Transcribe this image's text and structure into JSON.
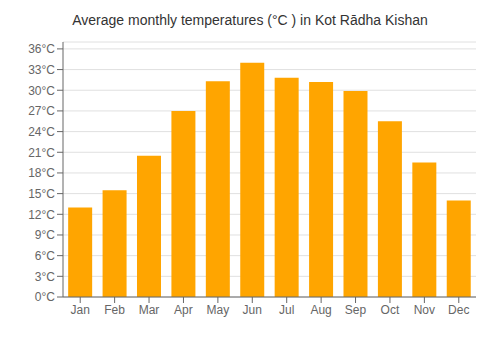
{
  "chart_data": {
    "type": "bar",
    "title": "Average monthly temperatures (°C ) in Kot Rādha Kishan",
    "categories": [
      "Jan",
      "Feb",
      "Mar",
      "Apr",
      "May",
      "Jun",
      "Jul",
      "Aug",
      "Sep",
      "Oct",
      "Nov",
      "Dec"
    ],
    "values": [
      13.0,
      15.5,
      20.5,
      27.0,
      31.3,
      34.0,
      31.8,
      31.2,
      29.9,
      25.5,
      19.5,
      14.0
    ],
    "color": "#FFA500",
    "ylim": [
      0,
      37
    ],
    "yticks": [
      {
        "value": 0,
        "label": "0°C"
      },
      {
        "value": 3,
        "label": "3°C"
      },
      {
        "value": 6,
        "label": "6°C"
      },
      {
        "value": 9,
        "label": "9°C"
      },
      {
        "value": 12,
        "label": "12°C"
      },
      {
        "value": 15,
        "label": "15°C"
      },
      {
        "value": 18,
        "label": "18°C"
      },
      {
        "value": 21,
        "label": "21°C"
      },
      {
        "value": 24,
        "label": "24°C"
      },
      {
        "value": 27,
        "label": "27°C"
      },
      {
        "value": 30,
        "label": "30°C"
      },
      {
        "value": 33,
        "label": "33°C"
      },
      {
        "value": 36,
        "label": "36°C"
      }
    ],
    "grid": true
  }
}
